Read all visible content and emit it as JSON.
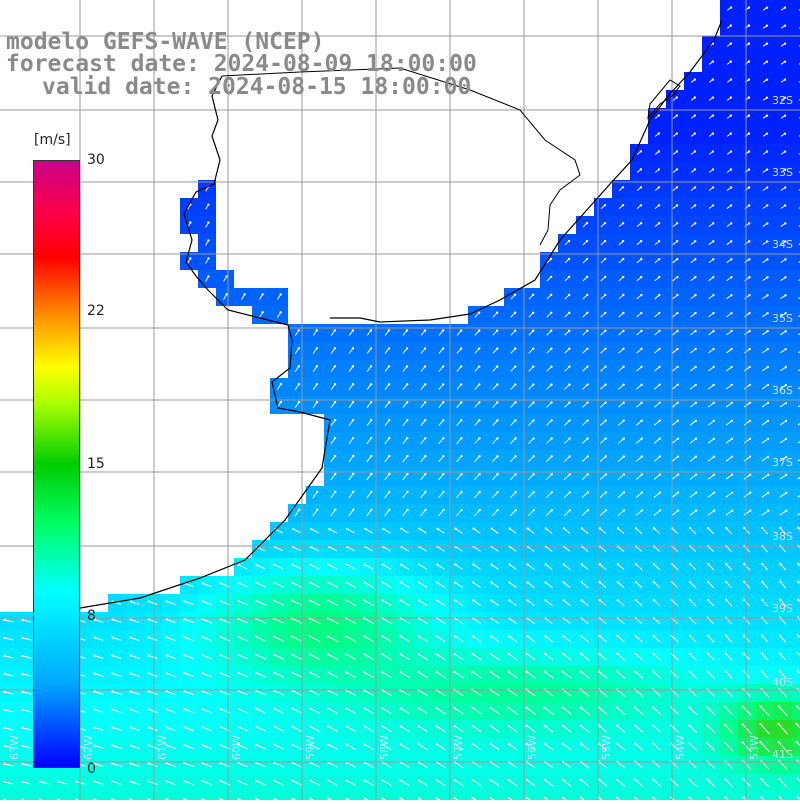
{
  "header": {
    "line1": "modelo GEFS-WAVE (NCEP)",
    "line2": "forecast date: 2024-08-09 18:00:00",
    "line3": "valid date: 2024-08-15 18:00:00"
  },
  "colorbar": {
    "unit": "[m/s]",
    "ticks": [
      "30",
      "22",
      "15",
      "8",
      "0"
    ],
    "tick_values": [
      30,
      22,
      15,
      8,
      0
    ],
    "colors": [
      "#0000ff",
      "#00aaff",
      "#00ffff",
      "#00ff66",
      "#00cc00",
      "#aaff00",
      "#ffff00",
      "#ff8800",
      "#ff0000",
      "#cc0088"
    ]
  },
  "lat_labels": [
    "32S",
    "33S",
    "34S",
    "35S",
    "36S",
    "37S",
    "38S",
    "39S",
    "40S",
    "41S"
  ],
  "lon_labels": [
    "63W",
    "62W",
    "61W",
    "60W",
    "59W",
    "58W",
    "57W",
    "56W",
    "55W",
    "54W",
    "53W"
  ],
  "colors": {
    "land": "#ffffff",
    "grid": "#999999",
    "coast": "#000000",
    "arrow": "#ffffff",
    "title": "#8a8a8a"
  }
}
